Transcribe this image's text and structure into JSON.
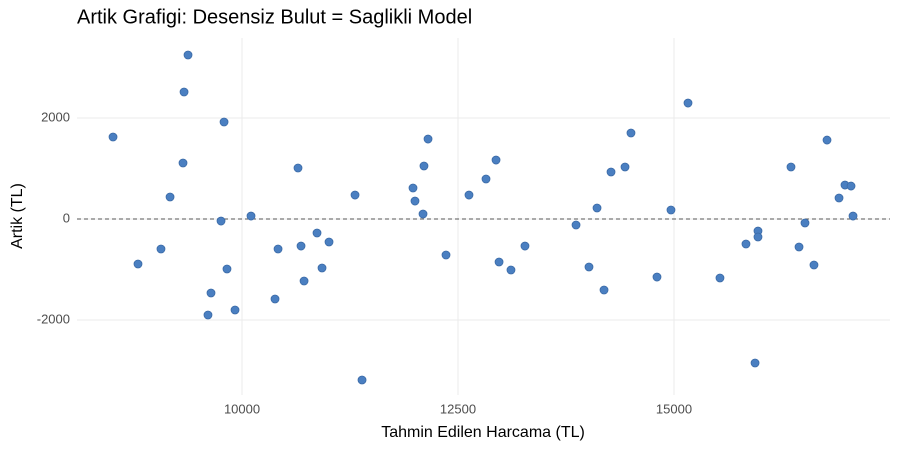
{
  "chart_data": {
    "type": "scatter",
    "title": "Artik Grafigi: Desensiz Bulut = Saglikli Model",
    "x_label": "Tahmin Edilen Harcama (TL)",
    "y_label": "Artik (TL)",
    "color": "#4a7fc1",
    "reference_line": 0,
    "grid": true,
    "xlim": [
      8090,
      17500
    ],
    "ylim": [
      -3485,
      3585
    ],
    "xticks": [
      10000,
      12500,
      15000
    ],
    "yticks": [
      -2000,
      0,
      2000
    ],
    "x": [
      8507,
      8796,
      9062,
      9167,
      9317,
      9329,
      9375,
      9641,
      9606,
      9757,
      9792,
      9826,
      9919,
      10104,
      10382,
      10417,
      10648,
      10683,
      10718,
      10868,
      10926,
      11007,
      11308,
      11389,
      11979,
      12002,
      12095,
      12106,
      12153,
      12361,
      12627,
      12824,
      12940,
      12975,
      13113,
      13275,
      13866,
      14016,
      14109,
      14190,
      14271,
      14433,
      14502,
      14803,
      14965,
      15162,
      15532,
      15833,
      15972,
      15972,
      15938,
      16354,
      16447,
      16516,
      16620,
      16771,
      16910,
      16979,
      17049,
      17072
    ],
    "values": [
      1624,
      -891,
      -594,
      436,
      1109,
      2515,
      3248,
      -1465,
      -1901,
      -40,
      1921,
      -990,
      -1802,
      59,
      -1584,
      -594,
      1010,
      -535,
      -1228,
      -277,
      -970,
      -455,
      475,
      -3188,
      614,
      356,
      99,
      1050,
      1584,
      -713,
      475,
      792,
      1168,
      -851,
      -1010,
      -535,
      -119,
      -950,
      218,
      -1406,
      931,
      1030,
      1703,
      -1149,
      178,
      2297,
      -1168,
      -495,
      -238,
      -356,
      -2851,
      1030,
      -554,
      -79,
      -911,
      1564,
      416,
      673,
      653,
      59
    ]
  }
}
